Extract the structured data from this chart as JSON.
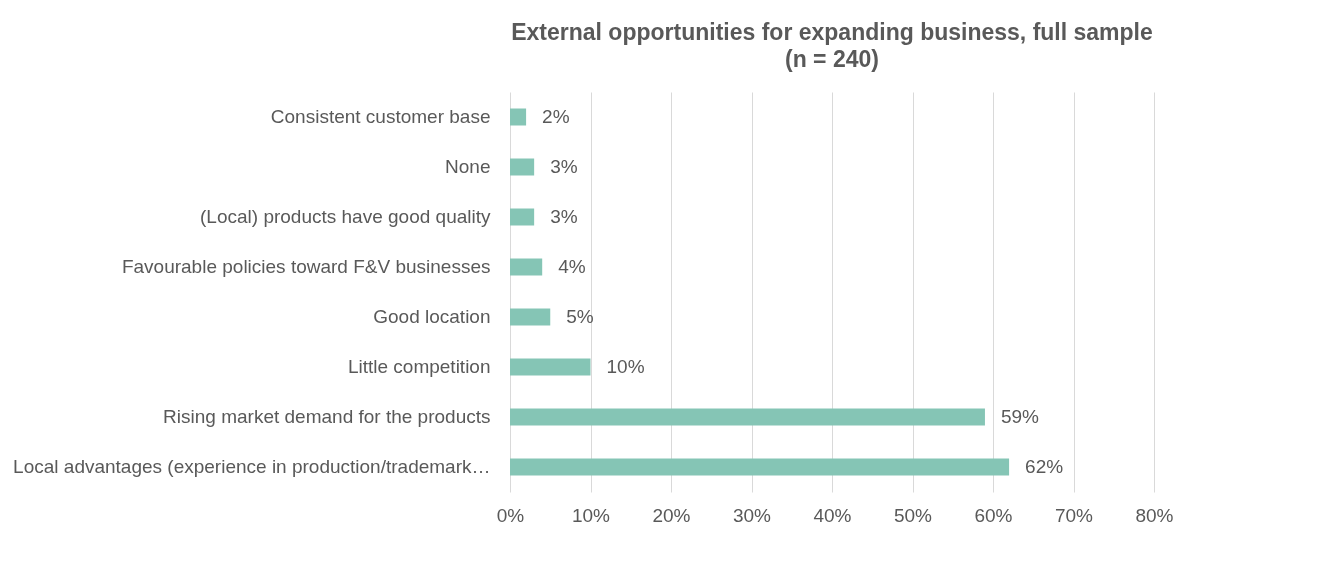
{
  "chart_data": {
    "type": "bar",
    "orientation": "horizontal",
    "title": "External opportunities for expanding business, full sample",
    "subtitle": "(n = 240)",
    "categories": [
      "Consistent customer base",
      "None",
      "(Local) products have good quality",
      "Favourable policies toward F&V businesses",
      "Good location",
      "Little competition",
      "Rising market demand for the products",
      "Local advantages (experience in production/trademark…"
    ],
    "values": [
      2,
      3,
      3,
      4,
      5,
      10,
      59,
      62
    ],
    "value_labels": [
      "2%",
      "3%",
      "3%",
      "4%",
      "5%",
      "10%",
      "59%",
      "62%"
    ],
    "color": "#85c5b5",
    "xlim": [
      0,
      80
    ],
    "xticks": [
      {
        "value": 0,
        "label": "0%"
      },
      {
        "value": 10,
        "label": "10%"
      },
      {
        "value": 20,
        "label": "20%"
      },
      {
        "value": 30,
        "label": "30%"
      },
      {
        "value": 40,
        "label": "40%"
      },
      {
        "value": 50,
        "label": "50%"
      },
      {
        "value": 60,
        "label": "60%"
      },
      {
        "value": 70,
        "label": "70%"
      },
      {
        "value": 80,
        "label": "80%"
      }
    ],
    "grid": "x"
  }
}
